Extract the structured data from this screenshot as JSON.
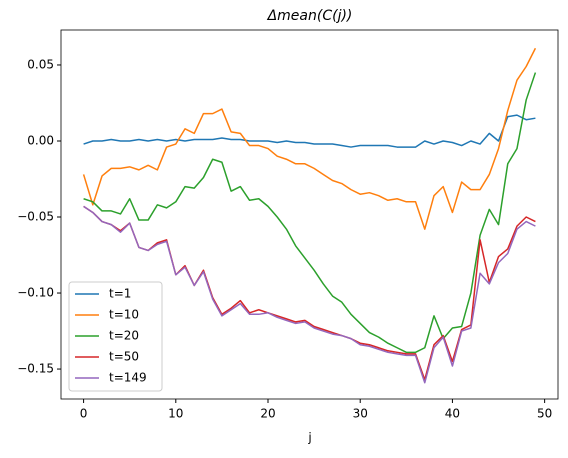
{
  "chart_data": {
    "type": "line",
    "title": "Δmean(C(j))",
    "x_label": "j",
    "x": [
      0,
      1,
      2,
      3,
      4,
      5,
      6,
      7,
      8,
      9,
      10,
      11,
      12,
      13,
      14,
      15,
      16,
      17,
      18,
      19,
      20,
      21,
      22,
      23,
      24,
      25,
      26,
      27,
      28,
      29,
      30,
      31,
      32,
      33,
      34,
      35,
      36,
      37,
      38,
      39,
      40,
      41,
      42,
      43,
      44,
      45,
      46,
      47,
      48,
      49
    ],
    "xlim": [
      -2.45,
      51.45
    ],
    "xticks": [
      0,
      10,
      20,
      30,
      40,
      50
    ],
    "ylim": [
      -0.1697,
      0.073
    ],
    "yticks": [
      {
        "value": -0.15,
        "label": "−0.15"
      },
      {
        "value": -0.1,
        "label": "−0.10"
      },
      {
        "value": -0.05,
        "label": "−0.05"
      },
      {
        "value": 0,
        "label": "0.00"
      },
      {
        "value": 0.05,
        "label": "0.05"
      }
    ],
    "grid": false,
    "legend": "lower left",
    "series": [
      {
        "name": "t=1",
        "color": "#1f77b4",
        "values": [
          -0.002,
          0,
          0,
          0.001,
          0,
          0,
          0.001,
          0,
          0.001,
          0,
          0.001,
          0,
          0.001,
          0.001,
          0.001,
          0.002,
          0.001,
          0.001,
          0,
          0,
          0,
          -0.001,
          0,
          -0.001,
          -0.001,
          -0.002,
          -0.002,
          -0.002,
          -0.003,
          -0.004,
          -0.003,
          -0.003,
          -0.003,
          -0.003,
          -0.004,
          -0.004,
          -0.004,
          0,
          -0.002,
          0,
          -0.001,
          -0.003,
          0,
          -0.002,
          0.005,
          0,
          0.016,
          0.017,
          0.014,
          0.015
        ]
      },
      {
        "name": "t=10",
        "color": "#ff7f0e",
        "values": [
          -0.022,
          -0.042,
          -0.023,
          -0.018,
          -0.018,
          -0.017,
          -0.019,
          -0.016,
          -0.019,
          -0.004,
          -0.002,
          0.008,
          0.005,
          0.018,
          0.018,
          0.021,
          0.006,
          0.005,
          -0.003,
          -0.003,
          -0.005,
          -0.01,
          -0.012,
          -0.015,
          -0.015,
          -0.018,
          -0.022,
          -0.026,
          -0.028,
          -0.032,
          -0.035,
          -0.034,
          -0.036,
          -0.039,
          -0.038,
          -0.04,
          -0.04,
          -0.058,
          -0.036,
          -0.03,
          -0.047,
          -0.027,
          -0.032,
          -0.032,
          -0.022,
          -0.005,
          0.02,
          0.04,
          0.049,
          0.061
        ]
      },
      {
        "name": "t=20",
        "color": "#2ca02c",
        "values": [
          -0.038,
          -0.04,
          -0.046,
          -0.046,
          -0.048,
          -0.038,
          -0.052,
          -0.052,
          -0.042,
          -0.044,
          -0.04,
          -0.03,
          -0.031,
          -0.024,
          -0.012,
          -0.014,
          -0.033,
          -0.03,
          -0.039,
          -0.038,
          -0.043,
          -0.05,
          -0.058,
          -0.069,
          -0.077,
          -0.085,
          -0.094,
          -0.102,
          -0.106,
          -0.114,
          -0.12,
          -0.126,
          -0.129,
          -0.133,
          -0.136,
          -0.139,
          -0.139,
          -0.136,
          -0.115,
          -0.13,
          -0.123,
          -0.122,
          -0.1,
          -0.062,
          -0.045,
          -0.055,
          -0.015,
          -0.005,
          0.027,
          0.045
        ]
      },
      {
        "name": "t=50",
        "color": "#d62728",
        "values": [
          -0.043,
          -0.047,
          -0.053,
          -0.055,
          -0.059,
          -0.054,
          -0.07,
          -0.072,
          -0.067,
          -0.065,
          -0.088,
          -0.082,
          -0.095,
          -0.085,
          -0.103,
          -0.114,
          -0.11,
          -0.105,
          -0.113,
          -0.111,
          -0.113,
          -0.115,
          -0.117,
          -0.119,
          -0.118,
          -0.122,
          -0.124,
          -0.126,
          -0.128,
          -0.13,
          -0.133,
          -0.134,
          -0.136,
          -0.138,
          -0.139,
          -0.14,
          -0.14,
          -0.157,
          -0.134,
          -0.128,
          -0.145,
          -0.124,
          -0.121,
          -0.065,
          -0.093,
          -0.076,
          -0.071,
          -0.056,
          -0.05,
          -0.053
        ]
      },
      {
        "name": "t=149",
        "color": "#9467bd",
        "values": [
          -0.043,
          -0.047,
          -0.053,
          -0.055,
          -0.06,
          -0.054,
          -0.07,
          -0.072,
          -0.068,
          -0.066,
          -0.088,
          -0.083,
          -0.095,
          -0.086,
          -0.104,
          -0.115,
          -0.111,
          -0.107,
          -0.114,
          -0.114,
          -0.113,
          -0.116,
          -0.118,
          -0.12,
          -0.119,
          -0.123,
          -0.125,
          -0.127,
          -0.128,
          -0.13,
          -0.134,
          -0.135,
          -0.137,
          -0.139,
          -0.14,
          -0.141,
          -0.141,
          -0.159,
          -0.136,
          -0.129,
          -0.148,
          -0.125,
          -0.123,
          -0.087,
          -0.094,
          -0.08,
          -0.074,
          -0.058,
          -0.053,
          -0.056
        ]
      }
    ]
  }
}
